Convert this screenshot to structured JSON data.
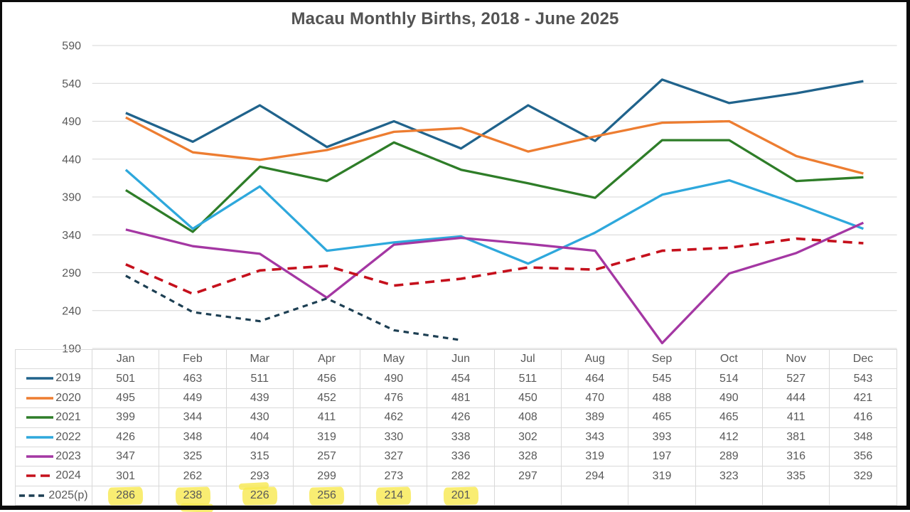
{
  "chart_data": {
    "type": "line",
    "title": "Macau Monthly Births, 2018 - June 2025",
    "x_categories": [
      "Jan",
      "Feb",
      "Mar",
      "Apr",
      "May",
      "Jun",
      "Jul",
      "Aug",
      "Sep",
      "Oct",
      "Nov",
      "Dec"
    ],
    "y_ticks": [
      590,
      540,
      490,
      440,
      390,
      340,
      290,
      240,
      190
    ],
    "ylim": [
      190,
      590
    ],
    "grid": true,
    "legend_position": "table-left-column",
    "series": [
      {
        "name": "2019",
        "color": "#20638C",
        "style": "solid",
        "values": [
          501,
          463,
          511,
          456,
          490,
          454,
          511,
          464,
          545,
          514,
          527,
          543
        ]
      },
      {
        "name": "2020",
        "color": "#ED7D31",
        "style": "solid",
        "values": [
          495,
          449,
          439,
          452,
          476,
          481,
          450,
          470,
          488,
          490,
          444,
          421
        ]
      },
      {
        "name": "2021",
        "color": "#2E7D28",
        "style": "solid",
        "values": [
          399,
          344,
          430,
          411,
          462,
          426,
          408,
          389,
          465,
          465,
          411,
          416
        ]
      },
      {
        "name": "2022",
        "color": "#2EA8DC",
        "style": "solid",
        "values": [
          426,
          348,
          404,
          319,
          330,
          338,
          302,
          343,
          393,
          412,
          381,
          348
        ]
      },
      {
        "name": "2023",
        "color": "#A437A3",
        "style": "solid",
        "values": [
          347,
          325,
          315,
          257,
          327,
          336,
          328,
          319,
          197,
          289,
          316,
          356
        ]
      },
      {
        "name": "2024",
        "color": "#C5101C",
        "style": "dashed",
        "values": [
          301,
          262,
          293,
          299,
          273,
          282,
          297,
          294,
          319,
          323,
          335,
          329
        ]
      },
      {
        "name": "2025(p)",
        "color": "#1D3F53",
        "style": "dashed-short",
        "values": [
          286,
          238,
          226,
          256,
          214,
          201
        ],
        "highlighted": true
      }
    ],
    "highlighted_values": [
      286,
      238,
      226,
      256,
      214,
      201
    ]
  },
  "colors": {
    "background": "#FFFFFF",
    "frame": "#0B0B0B",
    "gridline": "#D6D6D6",
    "table_border": "#D9D9D9",
    "text": "#595959",
    "title_text": "#535353",
    "highlight": "#F7E94F"
  }
}
